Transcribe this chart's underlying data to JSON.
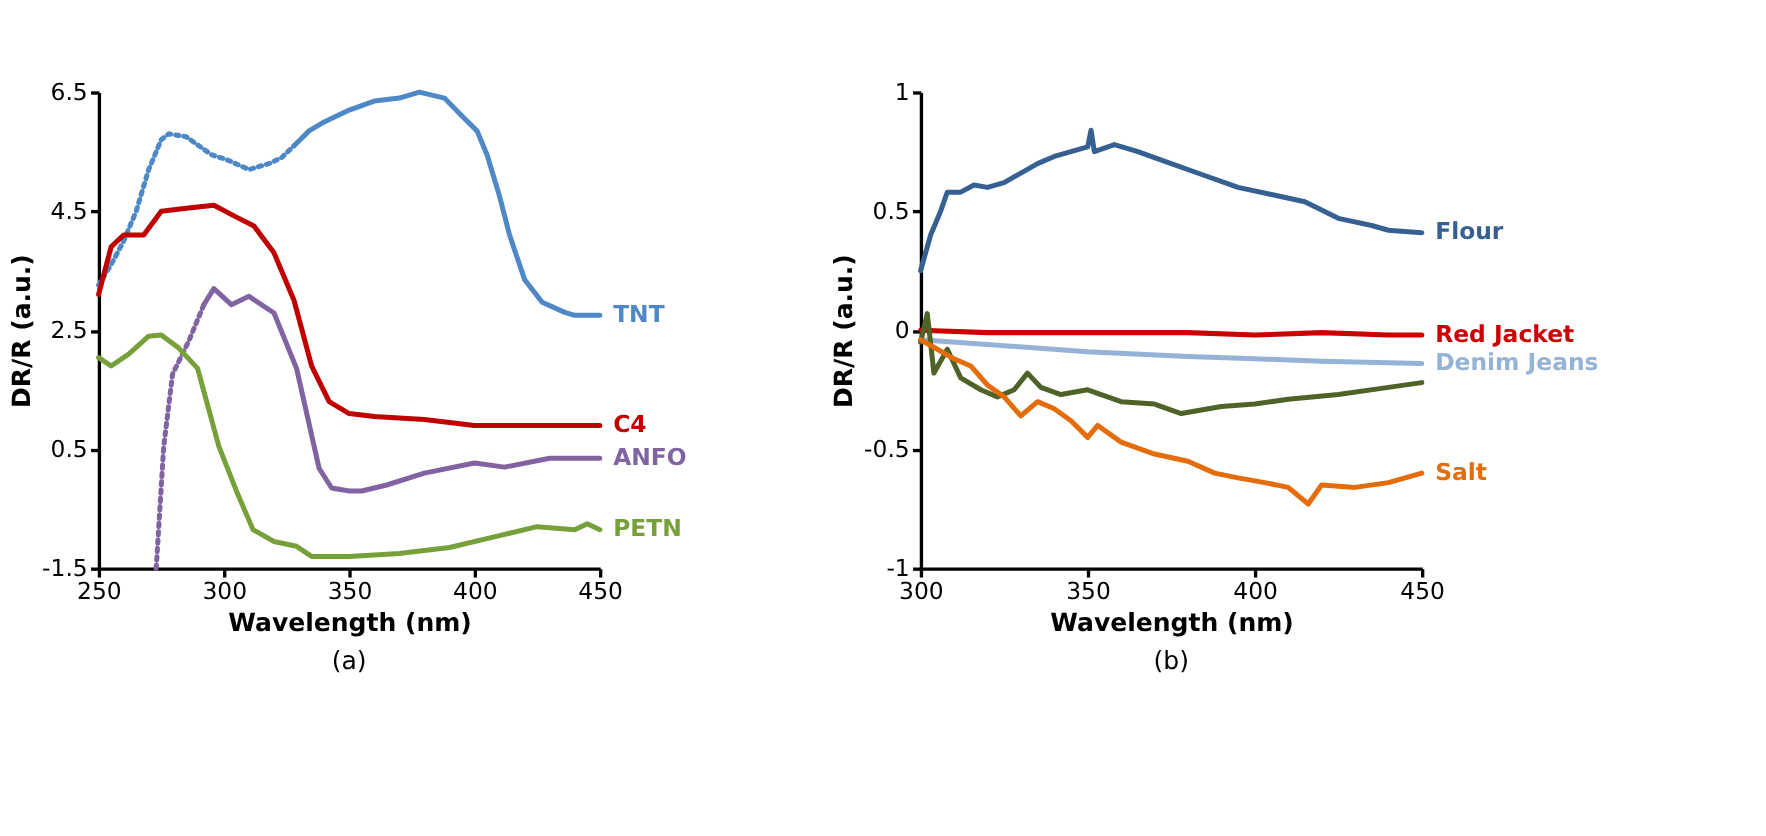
{
  "chart_data": [
    {
      "type": "line",
      "xlabel": "Wavelength (nm)",
      "ylabel": "DR/R (a.u.)",
      "xlim": [
        250,
        450
      ],
      "xticks": [
        250,
        300,
        350,
        400,
        450
      ],
      "ylim": [
        -1.5,
        6.5
      ],
      "yticks": [
        -1.5,
        0.5,
        2.5,
        4.5,
        6.5
      ],
      "grid": false,
      "annotations": [
        "(a)"
      ],
      "series": [
        {
          "color": "#4f88c6",
          "line_style": "dotted",
          "x": [
            250,
            255,
            260,
            265,
            270,
            275,
            278,
            285,
            290,
            295,
            302,
            310,
            318,
            323,
            328
          ],
          "values": [
            3.26,
            3.6,
            4.0,
            4.5,
            5.2,
            5.7,
            5.8,
            5.75,
            5.6,
            5.45,
            5.35,
            5.2,
            5.3,
            5.4,
            5.6
          ]
        },
        {
          "name": "TNT",
          "color": "#4f88c6",
          "line_style": "solid",
          "x": [
            328,
            334,
            340,
            350,
            360,
            370,
            378,
            388,
            395,
            401,
            405,
            410,
            414,
            420,
            427,
            436,
            440,
            450
          ],
          "values": [
            5.6,
            5.85,
            6.0,
            6.2,
            6.35,
            6.4,
            6.5,
            6.4,
            6.1,
            5.85,
            5.45,
            4.75,
            4.1,
            3.35,
            2.97,
            2.8,
            2.75,
            2.75
          ]
        },
        {
          "name": "C4",
          "color": "#c00000",
          "line_style": "solid",
          "x": [
            250,
            255,
            260,
            268,
            275,
            285,
            296,
            305,
            312,
            320,
            328,
            335,
            342,
            350,
            360,
            380,
            400,
            420,
            450
          ],
          "values": [
            3.1,
            3.9,
            4.1,
            4.1,
            4.5,
            4.55,
            4.6,
            4.4,
            4.25,
            3.8,
            3.0,
            1.9,
            1.3,
            1.1,
            1.05,
            1.0,
            0.9,
            0.9,
            0.9
          ]
        },
        {
          "color": "#8064a2",
          "line_style": "dotted",
          "x": [
            273,
            276,
            279.5,
            286,
            292
          ],
          "values": [
            -1.5,
            0.55,
            1.76,
            2.32,
            2.93
          ]
        },
        {
          "name": "ANFO",
          "color": "#8064a2",
          "line_style": "solid",
          "x": [
            292,
            296,
            303,
            310,
            320,
            329,
            338,
            343,
            350,
            355,
            365,
            380,
            400,
            412,
            430,
            450
          ],
          "values": [
            2.93,
            3.2,
            2.93,
            3.07,
            2.79,
            1.86,
            0.18,
            -0.15,
            -0.2,
            -0.2,
            -0.1,
            0.1,
            0.27,
            0.2,
            0.35,
            0.35
          ]
        },
        {
          "name": "PETN",
          "color": "#77a03a",
          "line_style": "solid",
          "x": [
            250,
            255,
            262,
            270,
            275,
            282,
            289.5,
            298,
            305,
            311.6,
            320,
            329,
            335,
            350,
            370,
            390,
            410,
            425,
            440,
            445,
            450
          ],
          "values": [
            2.04,
            1.9,
            2.1,
            2.4,
            2.42,
            2.2,
            1.86,
            0.55,
            -0.2,
            -0.85,
            -1.05,
            -1.13,
            -1.3,
            -1.3,
            -1.25,
            -1.15,
            -0.95,
            -0.8,
            -0.85,
            -0.75,
            -0.85
          ]
        }
      ]
    },
    {
      "type": "line",
      "xlabel": "Wavelength (nm)",
      "ylabel": "DR/R (a.u.)",
      "xlim": [
        300,
        450
      ],
      "xticks": [
        300,
        350,
        400,
        450
      ],
      "ylim": [
        -1,
        1
      ],
      "yticks": [
        -1,
        -0.5,
        0,
        0.5,
        1
      ],
      "grid": false,
      "annotations": [
        "(b)"
      ],
      "series": [
        {
          "name": "Flour",
          "color": "#376092",
          "line_style": "solid",
          "x": [
            300,
            303,
            306,
            308,
            312,
            316,
            320,
            325,
            330,
            335,
            340,
            345,
            350,
            351,
            352,
            358,
            365,
            375,
            385,
            395,
            405,
            415,
            425,
            435,
            440,
            450
          ],
          "values": [
            0.25,
            0.4,
            0.5,
            0.58,
            0.58,
            0.61,
            0.6,
            0.62,
            0.66,
            0.7,
            0.73,
            0.75,
            0.77,
            0.84,
            0.75,
            0.78,
            0.75,
            0.7,
            0.65,
            0.6,
            0.57,
            0.54,
            0.47,
            0.44,
            0.42,
            0.41
          ]
        },
        {
          "name": "Red Jacket",
          "color": "#cc0000",
          "line_style": "solid",
          "x": [
            300,
            320,
            340,
            360,
            380,
            400,
            420,
            440,
            450
          ],
          "values": [
            0.0,
            -0.01,
            -0.01,
            -0.01,
            -0.01,
            -0.02,
            -0.01,
            -0.02,
            -0.02
          ]
        },
        {
          "name": "Denim Jeans",
          "color": "#95b3d7",
          "line_style": "solid",
          "x": [
            300,
            320,
            350,
            380,
            400,
            420,
            450
          ],
          "values": [
            -0.04,
            -0.06,
            -0.09,
            -0.11,
            -0.12,
            -0.13,
            -0.14
          ]
        },
        {
          "color": "#4f6228",
          "line_style": "solid",
          "x": [
            300,
            302,
            304,
            308,
            312,
            318,
            323,
            328,
            332,
            336,
            342,
            350,
            360,
            370,
            378,
            390,
            400,
            410,
            425,
            440,
            450
          ],
          "values": [
            -0.05,
            0.07,
            -0.18,
            -0.08,
            -0.2,
            -0.25,
            -0.28,
            -0.25,
            -0.18,
            -0.24,
            -0.27,
            -0.25,
            -0.3,
            -0.31,
            -0.35,
            -0.32,
            -0.31,
            -0.29,
            -0.27,
            -0.24,
            -0.22
          ]
        },
        {
          "name": "Salt",
          "color": "#e46c0a",
          "line_style": "solid",
          "x": [
            300,
            305,
            310,
            315,
            320,
            325,
            330,
            335,
            340,
            345,
            350,
            353,
            360,
            370,
            380,
            388,
            395,
            403,
            410,
            416,
            420,
            430,
            440,
            450
          ],
          "values": [
            -0.04,
            -0.08,
            -0.12,
            -0.15,
            -0.23,
            -0.28,
            -0.36,
            -0.3,
            -0.33,
            -0.38,
            -0.45,
            -0.4,
            -0.47,
            -0.52,
            -0.55,
            -0.6,
            -0.62,
            -0.64,
            -0.66,
            -0.73,
            -0.65,
            -0.66,
            -0.64,
            -0.6
          ]
        }
      ]
    }
  ]
}
